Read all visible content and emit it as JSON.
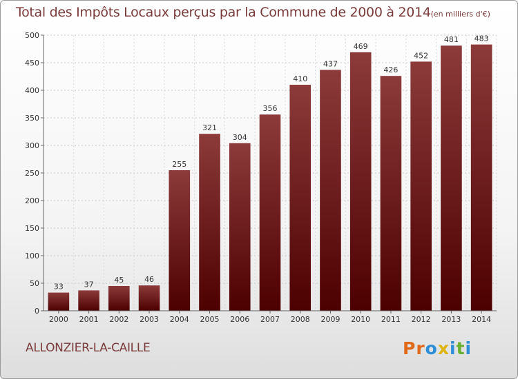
{
  "header": {
    "title": "Total des Impôts Locaux perçus par la Commune de 2000 à 2014",
    "unit": "(en milliers d'€)"
  },
  "footer": {
    "commune": "ALLONZIER-LA-CAILLE",
    "logo_letters": [
      "P",
      "r",
      "o",
      "x",
      "i",
      "t",
      "i"
    ]
  },
  "colors": {
    "bar_top": "#8c3a3a",
    "bar_bottom": "#4d0000",
    "text": "#7a3a3a",
    "logo": [
      "#e06a1a",
      "#e06a1a",
      "#2e8fd8",
      "#e0b410",
      "#2e8fd8",
      "#6ab030",
      "#2e8fd8"
    ]
  },
  "chart_data": {
    "type": "bar",
    "title": "Total des Impôts Locaux perçus par la Commune de 2000 à 2014",
    "xlabel": "",
    "ylabel": "",
    "categories": [
      "2000",
      "2001",
      "2002",
      "2003",
      "2004",
      "2005",
      "2006",
      "2007",
      "2008",
      "2009",
      "2010",
      "2011",
      "2012",
      "2013",
      "2014"
    ],
    "values": [
      33,
      37,
      45,
      46,
      255,
      321,
      304,
      356,
      410,
      437,
      469,
      426,
      452,
      481,
      483
    ],
    "ylim": [
      0,
      500
    ],
    "yticks": [
      0,
      50,
      100,
      150,
      200,
      250,
      300,
      350,
      400,
      450,
      500
    ],
    "grid": true
  }
}
